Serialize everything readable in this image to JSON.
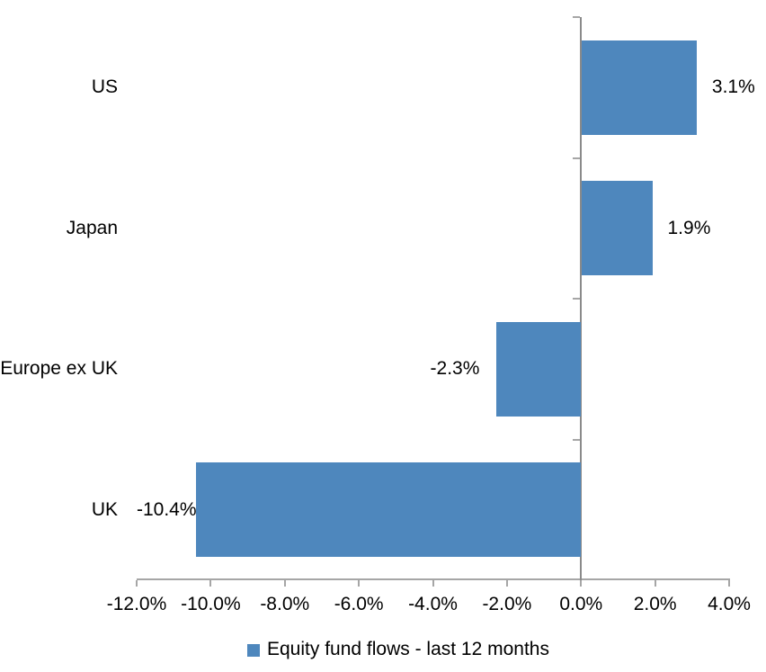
{
  "chart_data": {
    "type": "bar",
    "orientation": "horizontal",
    "categories": [
      "US",
      "Japan",
      "Europe ex UK",
      "UK"
    ],
    "values": [
      3.1,
      1.9,
      -2.3,
      -10.4
    ],
    "value_labels": [
      "3.1%",
      "1.9%",
      "-2.3%",
      "-10.4%"
    ],
    "x_tick_values": [
      -12,
      -10,
      -8,
      -6,
      -4,
      -2,
      0,
      2,
      4
    ],
    "x_tick_labels": [
      "-12.0%",
      "-10.0%",
      "-8.0%",
      "-6.0%",
      "-4.0%",
      "-2.0%",
      "0.0%",
      "2.0%",
      "4.0%"
    ],
    "xlim": [
      -12,
      4
    ],
    "title": "",
    "xlabel": "",
    "ylabel": "",
    "grid": false,
    "legend": "Equity fund flows - last 12 months",
    "legend_position": "bottom-center",
    "bar_color": "#4E87BD",
    "axis_color": "#A6A6A6",
    "zero_line_color": "#8A8A8A",
    "text_color": "#000000"
  }
}
